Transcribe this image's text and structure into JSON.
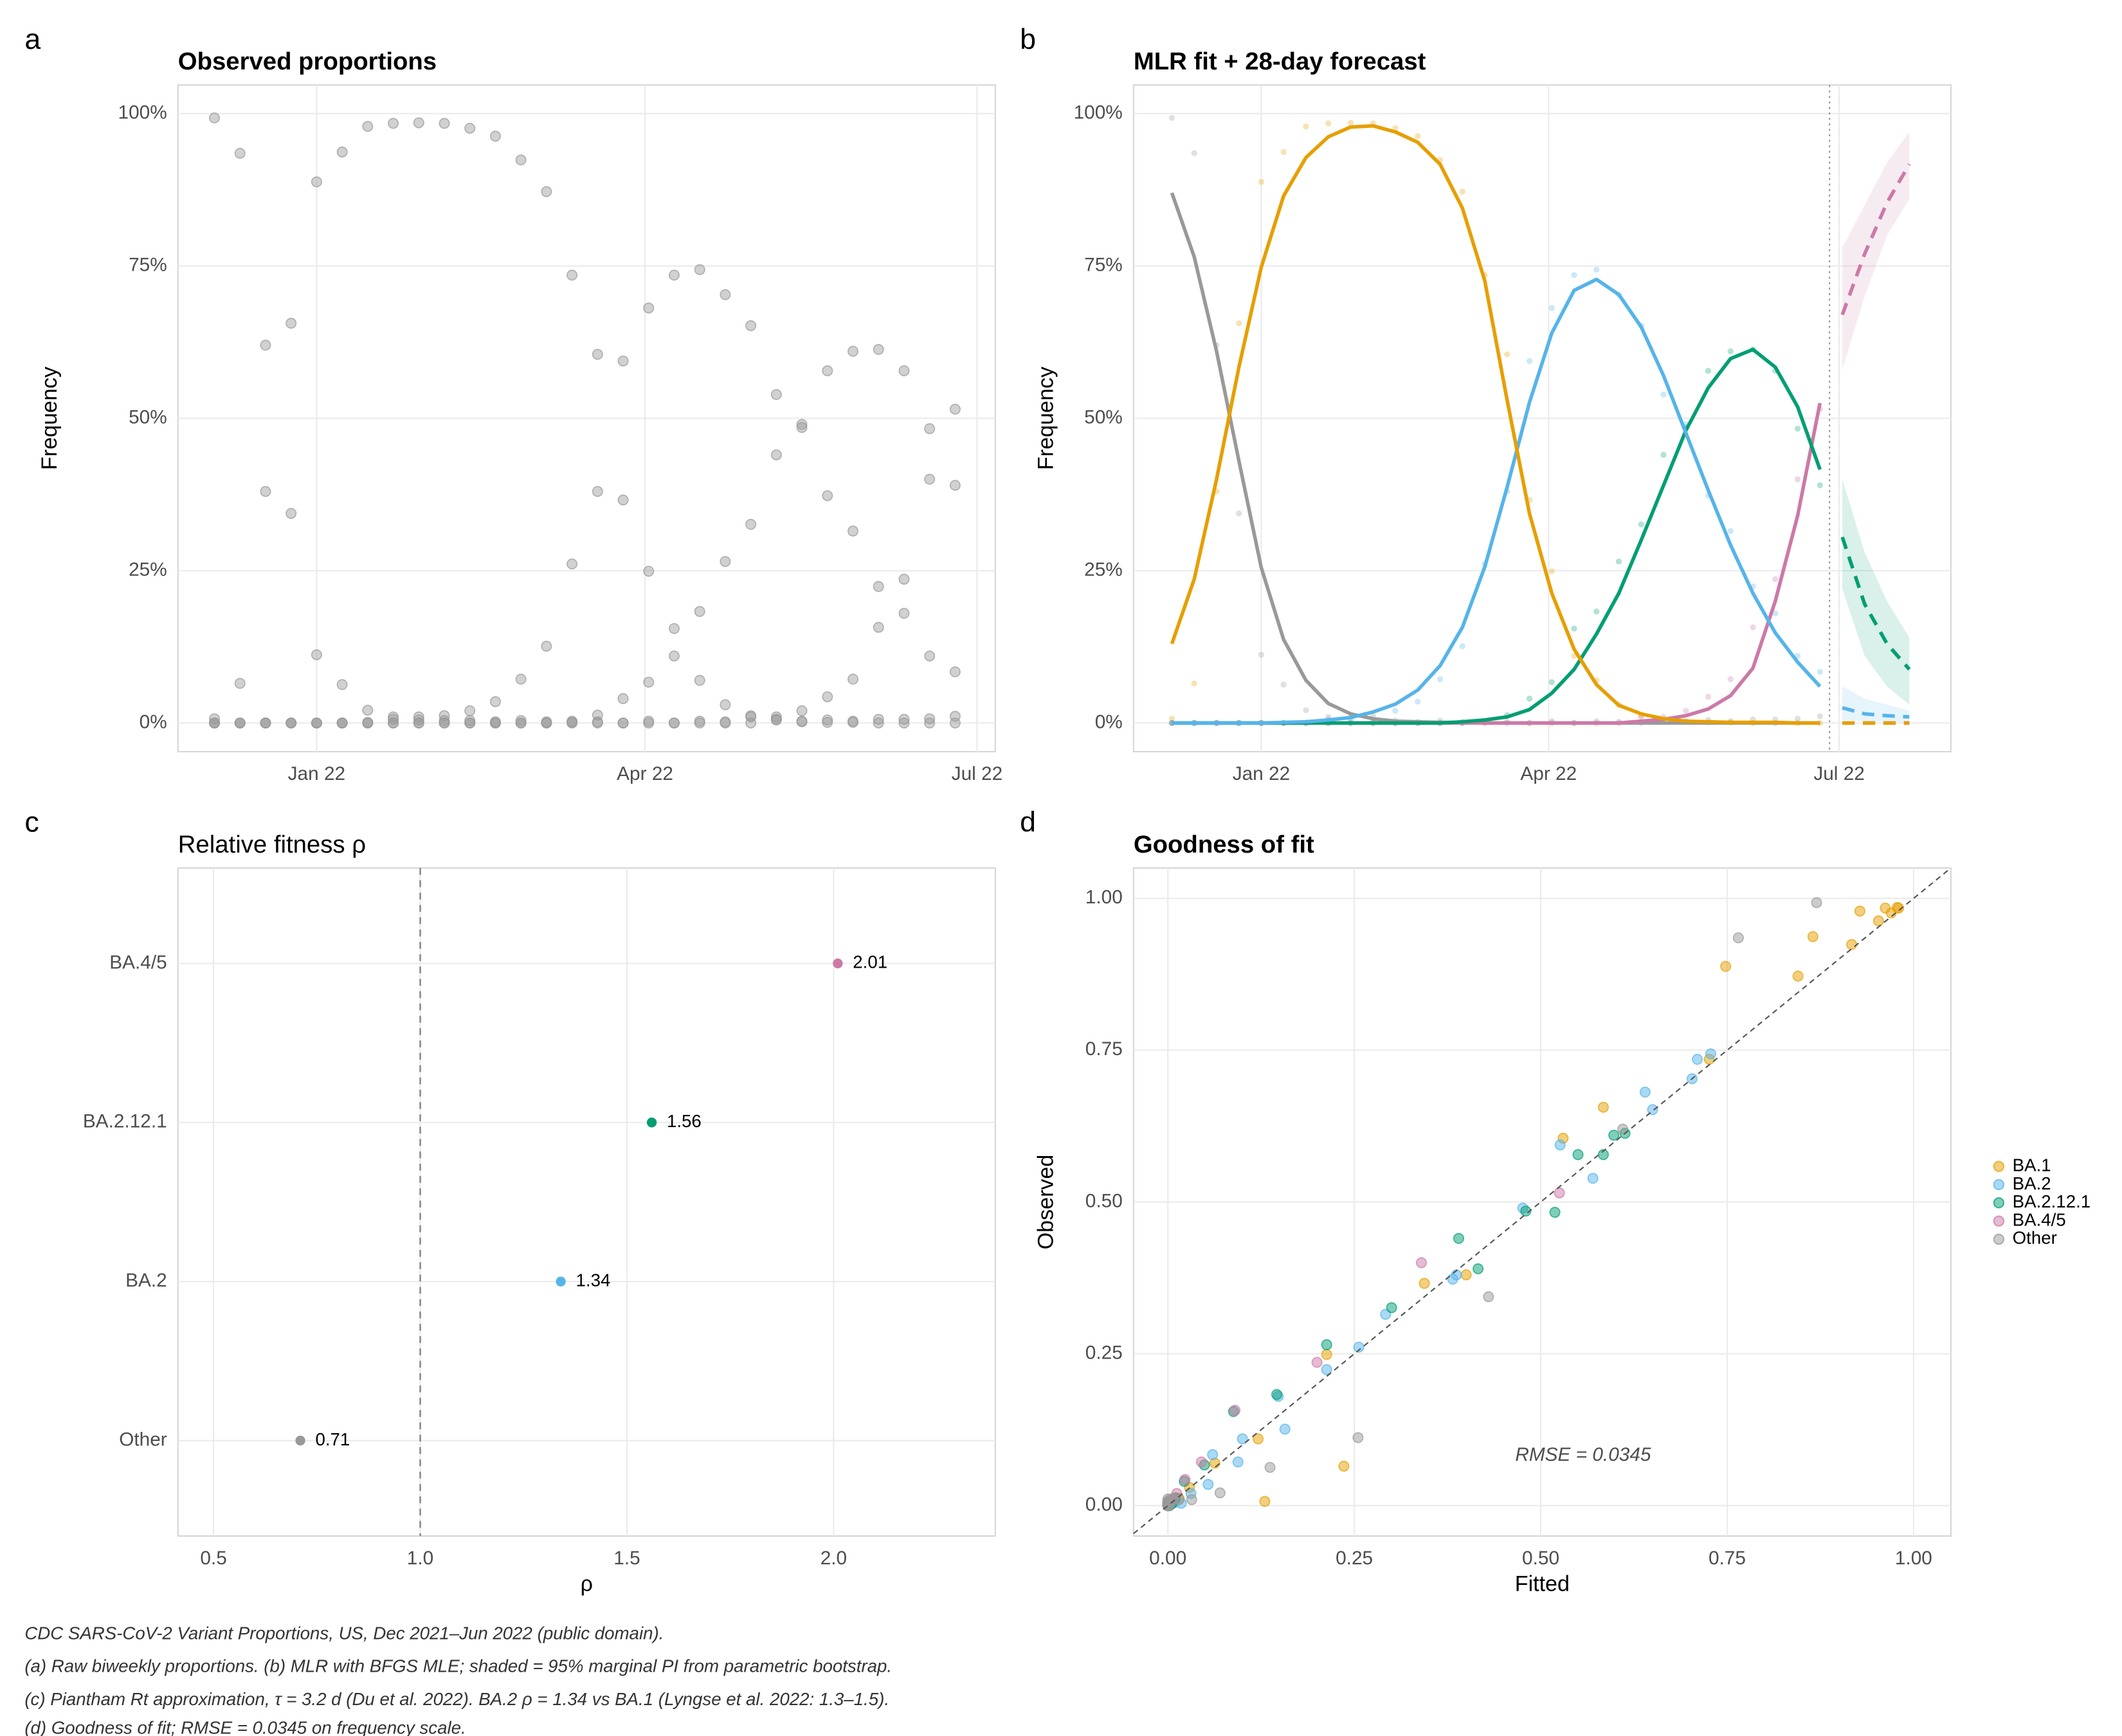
{
  "chart_data": [
    {
      "type": "scatter",
      "tag": "a",
      "title": "Observed proportions",
      "title_bold": true,
      "y_label": "Frequency",
      "x": [
        -28,
        -21,
        -14,
        -7,
        0,
        7,
        14,
        21,
        28,
        35,
        42,
        49,
        56,
        63,
        70,
        77,
        84,
        91,
        98,
        105,
        112,
        119,
        126,
        133,
        140,
        147,
        154,
        161,
        168,
        175
      ],
      "color": "#999999",
      "series": [
        {
          "values": [
            0.7,
            6.5,
            38,
            65.6,
            88.8,
            93.7,
            97.9,
            98.4,
            98.5,
            98.4,
            97.6,
            96.3,
            92.4,
            87.2,
            73.5,
            60.5,
            36.6,
            24.9,
            11,
            7,
            3,
            1.2,
            0.5,
            0.2,
            0.1,
            0.1,
            0,
            0,
            0,
            0
          ]
        },
        {
          "values": [
            0,
            0,
            0,
            0,
            0,
            0,
            0.1,
            0.6,
            0.5,
            0.4,
            2,
            3.5,
            7.2,
            12.6,
            26.1,
            38,
            59.4,
            68.1,
            73.5,
            74.4,
            70.3,
            65.2,
            53.9,
            49,
            37.3,
            31.5,
            22.4,
            18,
            11,
            8.4
          ]
        },
        {
          "values": [
            0,
            0,
            0,
            0,
            0,
            0,
            0,
            0,
            0,
            0,
            0,
            0,
            0,
            0,
            0.3,
            1.3,
            4,
            6.7,
            15.5,
            18.3,
            26.5,
            32.6,
            44,
            48.5,
            57.8,
            61,
            61.3,
            57.8,
            48.3,
            39
          ]
        },
        {
          "values": [
            0,
            0,
            0,
            0,
            0,
            0,
            0,
            0,
            0,
            0,
            0,
            0,
            0,
            0,
            0,
            0,
            0,
            0,
            0,
            0,
            0,
            1,
            1,
            2,
            4.3,
            7.2,
            15.7,
            23.6,
            40,
            51.5
          ]
        },
        {
          "values": [
            99.3,
            93.5,
            62,
            34.4,
            11.2,
            6.3,
            2.1,
            1,
            1,
            1.2,
            0.4,
            0.2,
            0.4,
            0.2,
            0.1,
            0.2,
            0,
            0.3,
            0,
            0.3,
            0.2,
            0,
            0.6,
            0.3,
            0.5,
            0.3,
            0.6,
            0.6,
            0.7,
            1.1
          ]
        }
      ],
      "xlim": [
        -38,
        186
      ],
      "ylim": [
        -4.7,
        104.7
      ],
      "xticks": [
        {
          "value": 0,
          "label": "Jan 22"
        },
        {
          "value": 90,
          "label": "Apr 22"
        },
        {
          "value": 181,
          "label": "Jul 22"
        }
      ],
      "yticks": [
        {
          "value": 0,
          "label": "0%"
        },
        {
          "value": 25,
          "label": "25%"
        },
        {
          "value": 50,
          "label": "50%"
        },
        {
          "value": 75,
          "label": "75%"
        },
        {
          "value": 100,
          "label": "100%"
        }
      ],
      "grid": true
    },
    {
      "type": "line",
      "tag": "b",
      "title": "MLR fit + 28-day forecast",
      "title_bold": true,
      "y_label": "Frequency",
      "x": [
        -28,
        -21,
        -14,
        -7,
        0,
        7,
        14,
        21,
        28,
        35,
        42,
        49,
        56,
        63,
        70,
        77,
        84,
        91,
        98,
        105,
        112,
        119,
        126,
        133,
        140,
        147,
        154,
        161,
        168,
        175
      ],
      "forecast_x": [
        182,
        189,
        196,
        203
      ],
      "vline": 178,
      "series": [
        {
          "color": "#e69f00",
          "values": [
            13,
            23.6,
            40,
            58.4,
            74.8,
            86.5,
            92.8,
            96.2,
            97.8,
            98,
            97,
            95.3,
            91.7,
            84.5,
            72.6,
            53,
            34.4,
            21.3,
            12.1,
            6.3,
            2.9,
            1.5,
            0.7,
            0.3,
            0.2,
            0.1,
            0.1,
            0.1,
            0,
            0
          ],
          "forecast": [
            0,
            0,
            0,
            0
          ],
          "lower": [
            0,
            0,
            0,
            0
          ],
          "upper": [
            0,
            0,
            0,
            0
          ]
        },
        {
          "color": "#56b4e9",
          "values": [
            0,
            0,
            0,
            0,
            0,
            0.1,
            0.2,
            0.5,
            0.9,
            1.8,
            3.1,
            5.4,
            9.4,
            15.7,
            25.6,
            38.7,
            52.6,
            64,
            71,
            72.8,
            70.3,
            65,
            57,
            47.6,
            38.2,
            29.2,
            21.3,
            14.8,
            10,
            6
          ],
          "forecast": [
            2.5,
            1.5,
            1.2,
            1
          ],
          "lower": [
            0.5,
            0.3,
            0.2,
            0.1
          ],
          "upper": [
            6,
            4,
            3,
            2
          ]
        },
        {
          "color": "#009e73",
          "values": [
            0,
            0,
            0,
            0,
            0,
            0,
            0,
            0,
            0,
            0,
            0,
            0,
            0,
            0.2,
            0.5,
            1,
            2.2,
            4.9,
            8.8,
            14.6,
            21.3,
            30,
            39,
            48,
            55,
            59.8,
            61.3,
            58.4,
            51.9,
            41.6
          ],
          "forecast": [
            30.5,
            19.5,
            13,
            8.8
          ],
          "lower": [
            22,
            11,
            6,
            3
          ],
          "upper": [
            40,
            28,
            20,
            14
          ]
        },
        {
          "color": "#cc79a7",
          "values": [
            0,
            0,
            0,
            0,
            0,
            0,
            0,
            0,
            0,
            0,
            0,
            0,
            0,
            0,
            0,
            0,
            0,
            0,
            0,
            0,
            0,
            0.3,
            0.6,
            1.2,
            2.3,
            4.5,
            9,
            20,
            34,
            52.5
          ],
          "forecast": [
            67,
            77,
            85.4,
            91.7
          ],
          "lower": [
            58,
            70,
            80,
            86
          ],
          "upper": [
            78,
            85,
            92,
            97
          ]
        },
        {
          "color": "#999999",
          "values": [
            87,
            76.5,
            61,
            43,
            25.5,
            13.7,
            7,
            3.2,
            1.5,
            0.7,
            0.3,
            0.2,
            0.1,
            0.1,
            0,
            0,
            0,
            0,
            0,
            0,
            0,
            0,
            0,
            0,
            0,
            0,
            0,
            0,
            0,
            0
          ],
          "forecast": [
            0,
            0,
            0,
            0
          ],
          "lower": [
            0,
            0,
            0,
            0
          ],
          "upper": [
            0,
            0,
            0,
            0
          ]
        }
      ],
      "xlim": [
        -40,
        216
      ],
      "ylim": [
        -4.7,
        104.7
      ],
      "xticks": [
        {
          "value": 0,
          "label": "Jan 22"
        },
        {
          "value": 90,
          "label": "Apr 22"
        },
        {
          "value": 181,
          "label": "Jul 22"
        }
      ],
      "yticks": [
        {
          "value": 0,
          "label": "0%"
        },
        {
          "value": 25,
          "label": "25%"
        },
        {
          "value": 50,
          "label": "50%"
        },
        {
          "value": 75,
          "label": "75%"
        },
        {
          "value": 100,
          "label": "100%"
        }
      ],
      "grid": true
    },
    {
      "type": "dot",
      "tag": "c",
      "title": "Relative fitness ρ",
      "title_bold": false,
      "x_label": "ρ",
      "categories": [
        "BA.4/5",
        "BA.2.12.1",
        "BA.2",
        "Other"
      ],
      "values": [
        2.01,
        1.56,
        1.34,
        0.71
      ],
      "colors": [
        "#cc79a7",
        "#009e73",
        "#56b4e9",
        "#999999"
      ],
      "vline": 1,
      "xlim": [
        0.414,
        2.391
      ],
      "xticks": [
        0.5,
        {
          "value": 1,
          "label": "1.0"
        },
        1.5,
        {
          "value": 2,
          "label": "2.0"
        }
      ],
      "grid": true
    },
    {
      "type": "scatter",
      "tag": "d",
      "title": "Goodness of fit",
      "title_bold": true,
      "x_label": "Fitted",
      "y_label": "Observed",
      "annotation": "RMSE = 0.0345",
      "diagonal": true,
      "legend": "right",
      "series": [
        {
          "name": "BA.1",
          "color": "#e69f00",
          "x": [
            0.13,
            0.236,
            0.4,
            0.584,
            0.748,
            0.865,
            0.928,
            0.962,
            0.978,
            0.98,
            0.97,
            0.953,
            0.917,
            0.845,
            0.726,
            0.53,
            0.344,
            0.213,
            0.121,
            0.063,
            0.029,
            0.015,
            0.007,
            0.003,
            0.002,
            0.001,
            0.001,
            0.001,
            0,
            0
          ],
          "values": [
            0.007,
            0.065,
            0.38,
            0.656,
            0.888,
            0.937,
            0.979,
            0.984,
            0.985,
            0.984,
            0.976,
            0.963,
            0.924,
            0.872,
            0.735,
            0.605,
            0.366,
            0.249,
            0.11,
            0.07,
            0.03,
            0.012,
            0.005,
            0.002,
            0.001,
            0.001,
            0,
            0,
            0,
            0
          ]
        },
        {
          "name": "BA.2",
          "color": "#56b4e9",
          "x": [
            0,
            0,
            0,
            0,
            0,
            0.001,
            0.002,
            0.005,
            0.009,
            0.018,
            0.031,
            0.054,
            0.094,
            0.157,
            0.256,
            0.387,
            0.526,
            0.64,
            0.71,
            0.728,
            0.703,
            0.65,
            0.57,
            0.476,
            0.382,
            0.292,
            0.213,
            0.148,
            0.1,
            0.06
          ],
          "values": [
            0,
            0,
            0,
            0,
            0,
            0,
            0.001,
            0.006,
            0.005,
            0.004,
            0.02,
            0.035,
            0.072,
            0.126,
            0.261,
            0.38,
            0.594,
            0.681,
            0.735,
            0.744,
            0.703,
            0.652,
            0.539,
            0.49,
            0.373,
            0.315,
            0.224,
            0.18,
            0.11,
            0.084
          ]
        },
        {
          "name": "BA.2.12.1",
          "color": "#009e73",
          "x": [
            0,
            0,
            0,
            0,
            0,
            0,
            0,
            0,
            0,
            0,
            0,
            0,
            0,
            0.002,
            0.005,
            0.01,
            0.022,
            0.049,
            0.088,
            0.146,
            0.213,
            0.3,
            0.39,
            0.48,
            0.55,
            0.598,
            0.613,
            0.584,
            0.519,
            0.416
          ],
          "values": [
            0,
            0,
            0,
            0,
            0,
            0,
            0,
            0,
            0,
            0,
            0,
            0,
            0,
            0,
            0.003,
            0.013,
            0.04,
            0.067,
            0.155,
            0.183,
            0.265,
            0.326,
            0.44,
            0.485,
            0.578,
            0.61,
            0.613,
            0.578,
            0.483,
            0.39
          ]
        },
        {
          "name": "BA.4/5",
          "color": "#cc79a7",
          "x": [
            0,
            0,
            0,
            0,
            0,
            0,
            0,
            0,
            0,
            0,
            0,
            0,
            0,
            0,
            0,
            0,
            0,
            0,
            0,
            0,
            0,
            0.003,
            0.006,
            0.012,
            0.023,
            0.045,
            0.09,
            0.2,
            0.34,
            0.525
          ],
          "values": [
            0,
            0,
            0,
            0,
            0,
            0,
            0,
            0,
            0,
            0,
            0,
            0,
            0,
            0,
            0,
            0,
            0,
            0,
            0,
            0,
            0,
            0.01,
            0.01,
            0.02,
            0.043,
            0.072,
            0.157,
            0.236,
            0.4,
            0.515
          ]
        },
        {
          "name": "Other",
          "color": "#999999",
          "x": [
            0.87,
            0.765,
            0.61,
            0.43,
            0.255,
            0.137,
            0.07,
            0.032,
            0.015,
            0.007,
            0.003,
            0.002,
            0.001,
            0.001,
            0,
            0,
            0,
            0,
            0,
            0,
            0,
            0,
            0,
            0,
            0,
            0,
            0,
            0,
            0,
            0
          ],
          "values": [
            0.993,
            0.935,
            0.62,
            0.344,
            0.112,
            0.063,
            0.021,
            0.01,
            0.01,
            0.012,
            0.004,
            0.002,
            0.004,
            0.002,
            0.001,
            0.002,
            0,
            0.003,
            0,
            0.003,
            0.002,
            0,
            0.006,
            0.003,
            0.005,
            0.003,
            0.006,
            0.006,
            0.007,
            0.011
          ]
        }
      ],
      "xlim": [
        -0.046,
        1.05
      ],
      "ylim": [
        -0.05,
        1.05
      ],
      "xticks": [
        {
          "value": 0,
          "label": "0.00"
        },
        {
          "value": 0.25,
          "label": "0.25"
        },
        {
          "value": 0.5,
          "label": "0.50"
        },
        {
          "value": 0.75,
          "label": "0.75"
        },
        {
          "value": 1,
          "label": "1.00"
        }
      ],
      "yticks": [
        {
          "value": 0,
          "label": "0.00"
        },
        {
          "value": 0.25,
          "label": "0.25"
        },
        {
          "value": 0.5,
          "label": "0.50"
        },
        {
          "value": 0.75,
          "label": "0.75"
        },
        {
          "value": 1,
          "label": "1.00"
        }
      ],
      "grid": true
    }
  ],
  "notes": [
    "CDC SARS-CoV-2 Variant Proportions, US, Dec 2021–Jun 2022 (public domain).",
    "(a) Raw biweekly proportions. (b) MLR with BFGS MLE; shaded = 95% marginal PI from parametric bootstrap.",
    "(c) Piantham Rt approximation, τ = 3.2 d (Du et al. 2022). BA.2 ρ = 1.34 vs BA.1 (Lyngse et al. 2022: 1.3–1.5).",
    "(d) Goodness of fit; RMSE = 0.0345 on frequency scale."
  ]
}
